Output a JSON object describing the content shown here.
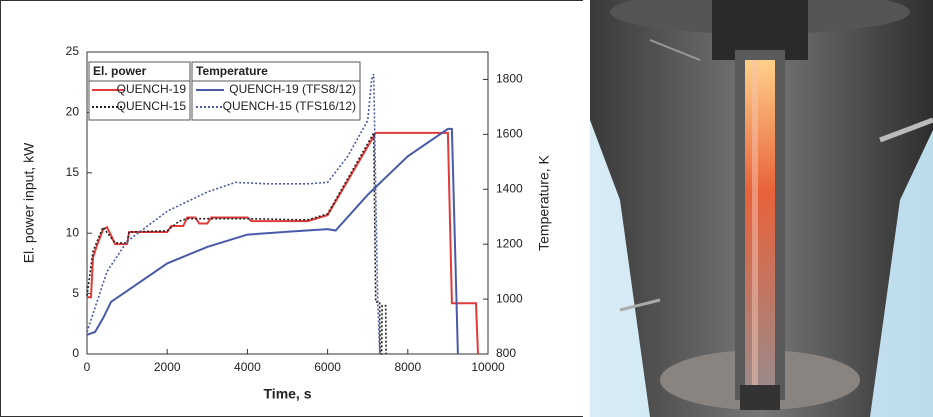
{
  "chart_data": {
    "type": "line",
    "x_label": "Time, s",
    "y_label": "El. power input, kW",
    "y2_label": "Temperature, K",
    "legend_groups": [
      "El. power",
      "Temperature"
    ],
    "xlim": [
      0,
      10000
    ],
    "xticks": [
      0,
      2000,
      4000,
      6000,
      8000,
      10000
    ],
    "ylim": [
      0,
      25
    ],
    "yticks": [
      0,
      5,
      10,
      15,
      20,
      25
    ],
    "y2lim": [
      800,
      1900
    ],
    "y2ticks": [
      800,
      1000,
      1200,
      1400,
      1600,
      1800
    ],
    "grid": false,
    "series": [
      {
        "name": "QUENCH-19",
        "color": "#e03a3a",
        "dash": "solid",
        "axis": "y",
        "x": [
          0,
          100,
          150,
          250,
          400,
          500,
          600,
          700,
          1000,
          1050,
          2000,
          2100,
          2400,
          2500,
          2700,
          2800,
          3000,
          3100,
          4000,
          4100,
          5500,
          6000,
          7200,
          9000,
          9100,
          9700,
          9750
        ],
        "values": [
          4.7,
          4.7,
          8,
          9,
          10.3,
          10.5,
          9.8,
          9.1,
          9.1,
          10.1,
          10.1,
          10.6,
          10.6,
          11.3,
          11.3,
          10.8,
          10.8,
          11.3,
          11.3,
          11,
          11,
          11.5,
          18.3,
          18.3,
          4.2,
          4.2,
          0
        ]
      },
      {
        "name": "QUENCH-15",
        "color": "#222222",
        "dash": "dotted",
        "axis": "y",
        "x": [
          0,
          150,
          400,
          700,
          1000,
          1050,
          2000,
          2300,
          2500,
          4000,
          5500,
          6000,
          7100,
          7150,
          7200,
          7300,
          7310,
          7350,
          7360,
          7450,
          7460
        ],
        "values": [
          4.8,
          8.5,
          10.5,
          9.2,
          9.2,
          10.1,
          10.2,
          11,
          11.2,
          11.2,
          11.1,
          11.6,
          18,
          18.3,
          4.3,
          4.3,
          0,
          0,
          4,
          4,
          0
        ]
      },
      {
        "name": "QUENCH-19 (TFS8/12)",
        "color": "#4a5aa8",
        "dash": "solid",
        "axis": "y2",
        "x": [
          0,
          200,
          400,
          600,
          1000,
          2000,
          3000,
          4000,
          5000,
          6000,
          6200,
          7000,
          8000,
          9000,
          9100,
          9250
        ],
        "values": [
          870,
          880,
          930,
          990,
          1030,
          1130,
          1190,
          1235,
          1245,
          1255,
          1250,
          1380,
          1520,
          1620,
          1620,
          800
        ]
      },
      {
        "name": "QUENCH-15 (TFS16/12)",
        "color": "#4a5aa8",
        "dash": "dotted",
        "axis": "y2",
        "x": [
          0,
          500,
          1000,
          2000,
          3000,
          3700,
          4500,
          5500,
          6000,
          6500,
          7000,
          7100,
          7150,
          7200,
          7250,
          7300
        ],
        "values": [
          880,
          1100,
          1210,
          1320,
          1390,
          1425,
          1420,
          1420,
          1425,
          1520,
          1650,
          1800,
          1820,
          1400,
          1000,
          800
        ]
      }
    ]
  }
}
